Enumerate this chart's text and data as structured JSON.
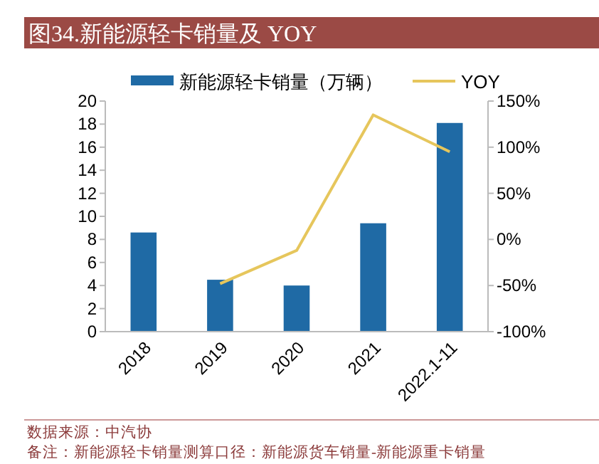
{
  "chart_data": {
    "type": "bar",
    "title": "图34.新能源轻卡销量及 YOY",
    "categories": [
      "2018",
      "2019",
      "2020",
      "2021",
      "2022.1-11"
    ],
    "series": [
      {
        "name": "新能源轻卡销量（万辆）",
        "color": "#1f6aa5",
        "values": [
          8.6,
          4.5,
          4.0,
          9.4,
          18.1
        ]
      },
      {
        "name": "YOY",
        "type": "line",
        "axis": "y2",
        "color": "#e6c65c",
        "values": [
          null,
          -48,
          -12,
          135,
          95
        ]
      }
    ],
    "ylim": [
      0,
      20
    ],
    "yticks": [
      0,
      2,
      4,
      6,
      8,
      10,
      12,
      14,
      16,
      18,
      20
    ],
    "y2lim": [
      -100,
      150
    ],
    "y2ticks": [
      {
        "value": -100,
        "label": "-100%"
      },
      {
        "value": -50,
        "label": "-50%"
      },
      {
        "value": 0,
        "label": "0%"
      },
      {
        "value": 50,
        "label": "50%"
      },
      {
        "value": 100,
        "label": "100%"
      },
      {
        "value": 150,
        "label": "150%"
      }
    ],
    "legend": "top",
    "grid": false,
    "annotations": [
      "数据来源：中汽协",
      "备注：新能源轻卡销量测算口径：新能源货车销量-新能源重卡销量"
    ]
  }
}
